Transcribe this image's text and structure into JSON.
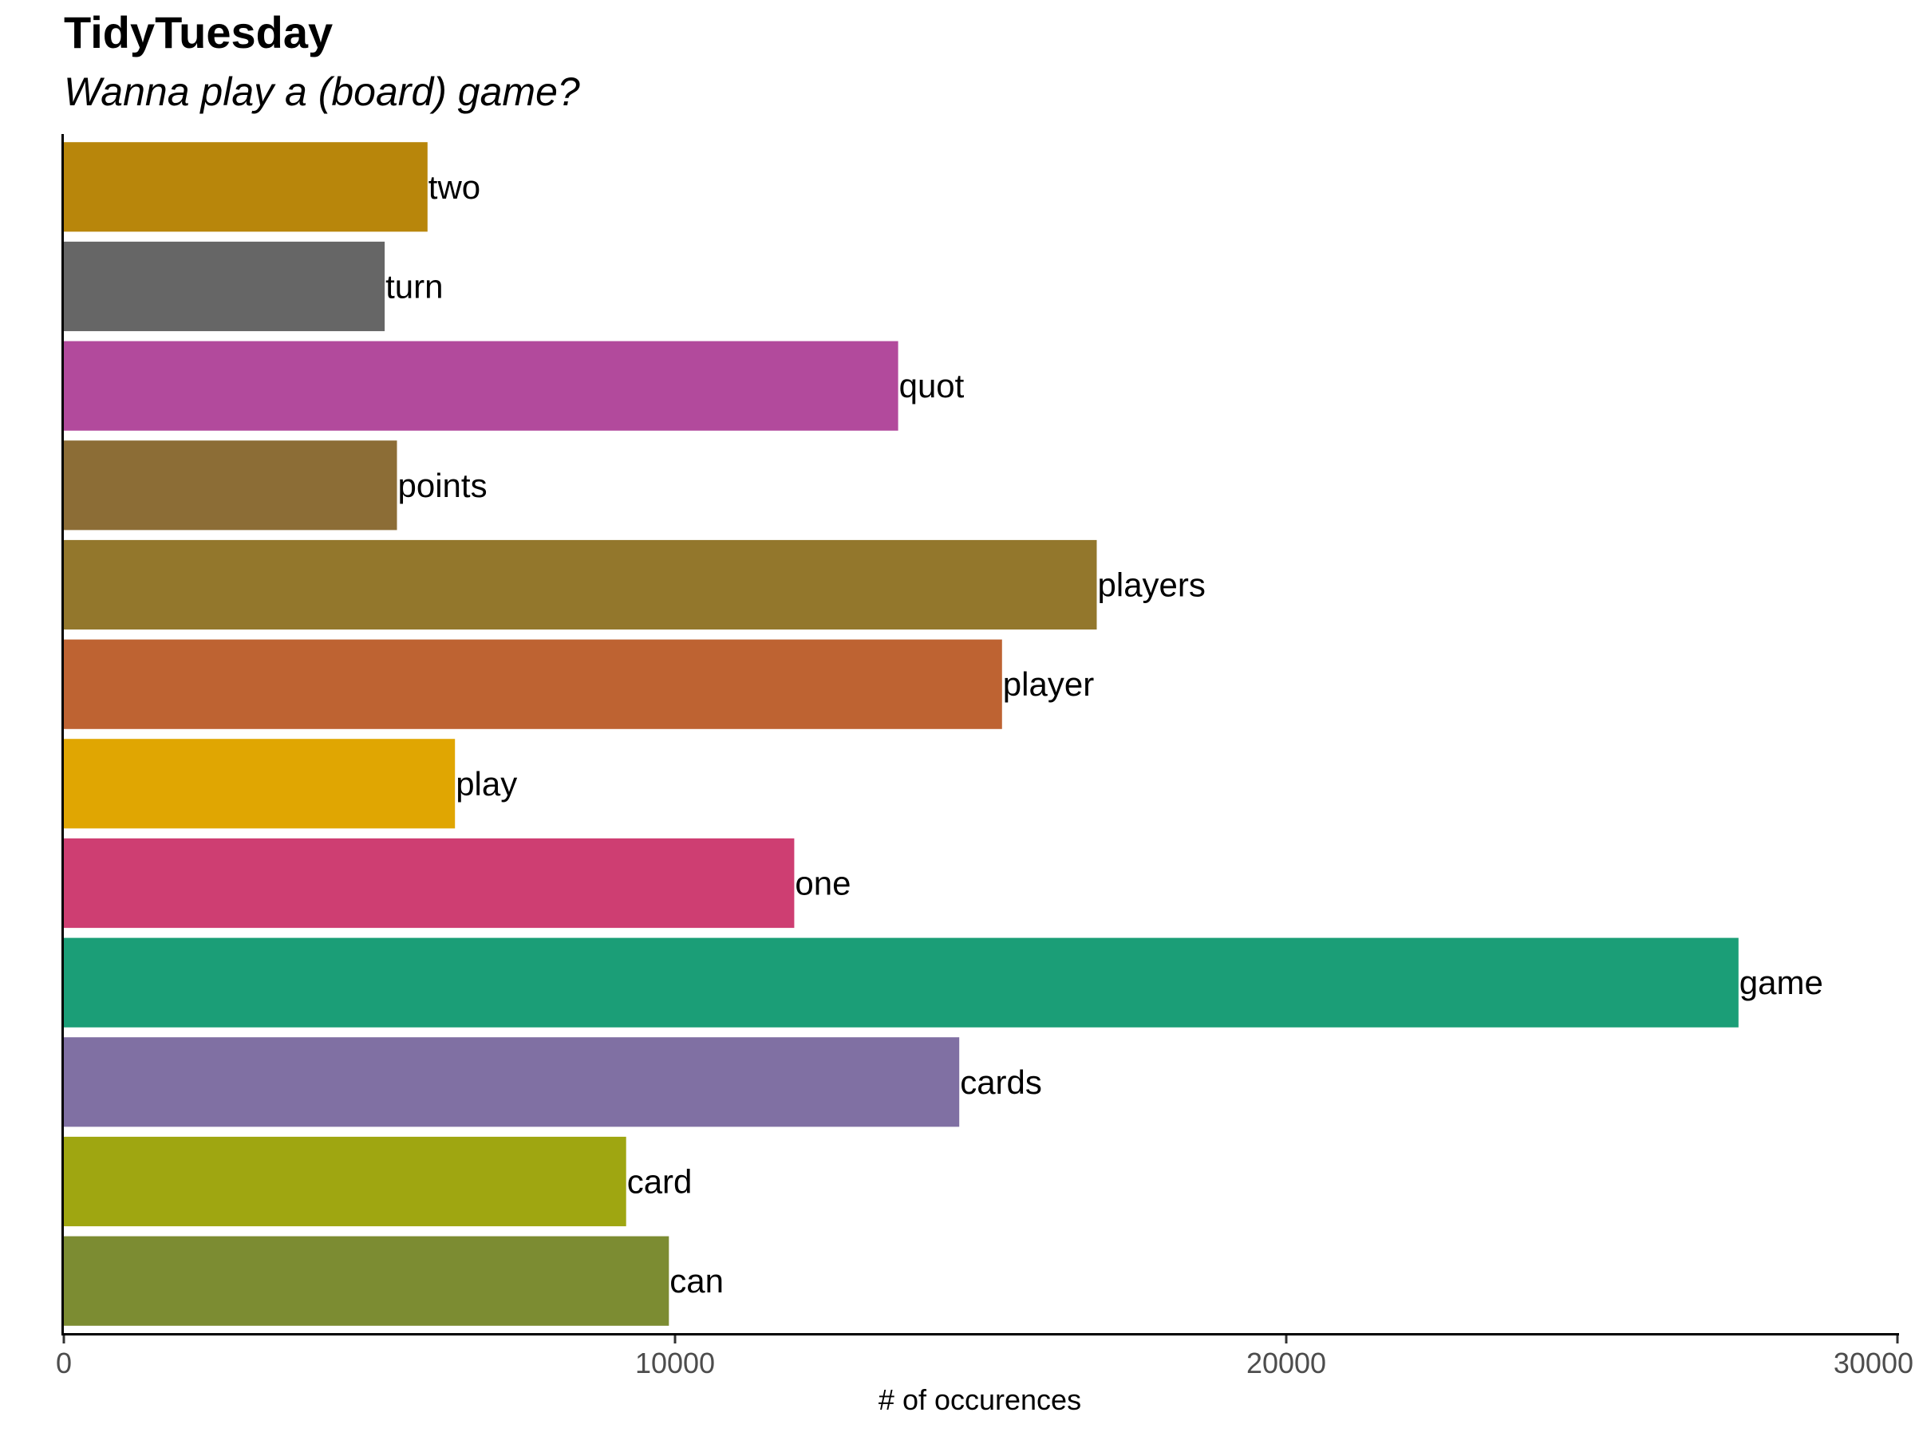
{
  "chart_data": {
    "type": "bar",
    "orientation": "horizontal",
    "title": "TidyTuesday",
    "subtitle": "Wanna play a (board) game?",
    "xlabel": "# of occurences",
    "ylabel": "",
    "xlim": [
      0,
      30000
    ],
    "x_ticks": [
      0,
      10000,
      20000,
      30000
    ],
    "x_tick_labels": [
      "0",
      "10000",
      "20000",
      "30000"
    ],
    "grid": false,
    "legend": "none",
    "bars": [
      {
        "label": "two",
        "value": 5950,
        "color": "#B8860B"
      },
      {
        "label": "turn",
        "value": 5250,
        "color": "#666666"
      },
      {
        "label": "quot",
        "value": 13650,
        "color": "#B24A9C"
      },
      {
        "label": "points",
        "value": 5450,
        "color": "#8C6D36"
      },
      {
        "label": "players",
        "value": 16900,
        "color": "#93772C"
      },
      {
        "label": "player",
        "value": 15350,
        "color": "#BE6332"
      },
      {
        "label": "play",
        "value": 6400,
        "color": "#E0A602"
      },
      {
        "label": "one",
        "value": 11950,
        "color": "#CE3E72"
      },
      {
        "label": "game",
        "value": 27400,
        "color": "#1B9E77"
      },
      {
        "label": "cards",
        "value": 14650,
        "color": "#8070A3"
      },
      {
        "label": "card",
        "value": 9200,
        "color": "#9FA611"
      },
      {
        "label": "can",
        "value": 9900,
        "color": "#7C8C32"
      }
    ]
  }
}
